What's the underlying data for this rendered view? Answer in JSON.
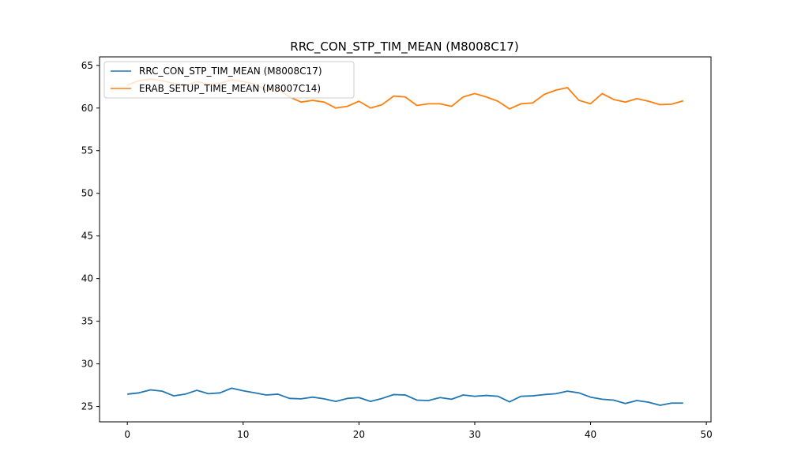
{
  "chart_data": {
    "type": "line",
    "title": "RRC_CON_STP_TIM_MEAN (M8008C17)",
    "xlabel": "",
    "ylabel": "",
    "xlim": [
      -2.4,
      50.4
    ],
    "ylim": [
      23.2,
      66.0
    ],
    "xticks": [
      0,
      10,
      20,
      30,
      40,
      50
    ],
    "yticks": [
      25,
      30,
      35,
      40,
      45,
      50,
      55,
      60,
      65
    ],
    "legend_position": "top-left",
    "grid": false,
    "x": [
      0,
      1,
      2,
      3,
      4,
      5,
      6,
      7,
      8,
      9,
      10,
      11,
      12,
      13,
      14,
      15,
      16,
      17,
      18,
      19,
      20,
      21,
      22,
      23,
      24,
      25,
      26,
      27,
      28,
      29,
      30,
      31,
      32,
      33,
      34,
      35,
      36,
      37,
      38,
      39,
      40,
      41,
      42,
      43,
      44,
      45,
      46,
      47,
      48
    ],
    "series": [
      {
        "name": "RRC_CON_STP_TIM_MEAN (M8008C17)",
        "color": "#1f77b4",
        "values": [
          26.45,
          26.6,
          26.95,
          26.8,
          26.25,
          26.45,
          26.9,
          26.5,
          26.6,
          27.15,
          26.85,
          26.6,
          26.35,
          26.45,
          25.95,
          25.9,
          26.1,
          25.9,
          25.6,
          25.95,
          26.05,
          25.6,
          25.95,
          26.4,
          26.35,
          25.75,
          25.7,
          26.05,
          25.85,
          26.35,
          26.2,
          26.3,
          26.2,
          25.55,
          26.2,
          26.25,
          26.4,
          26.5,
          26.8,
          26.6,
          26.1,
          25.85,
          25.75,
          25.35,
          25.7,
          25.5,
          25.15,
          25.4,
          25.4
        ]
      },
      {
        "name": "ERAB_SETUP_TIME_MEAN (M8007C14)",
        "color": "#ff7f0e",
        "values": [
          62.7,
          63.2,
          63.4,
          63.2,
          62.9,
          62.6,
          63.1,
          62.8,
          62.9,
          63.3,
          63.1,
          62.8,
          62.1,
          62.3,
          61.3,
          60.7,
          60.9,
          60.7,
          60.0,
          60.2,
          60.8,
          60.0,
          60.4,
          61.4,
          61.3,
          60.3,
          60.5,
          60.5,
          60.2,
          61.3,
          61.7,
          61.3,
          60.8,
          59.9,
          60.5,
          60.6,
          61.6,
          62.1,
          62.4,
          60.9,
          60.5,
          61.7,
          61.0,
          60.7,
          61.1,
          60.8,
          60.4,
          60.45,
          60.85
        ]
      }
    ]
  }
}
